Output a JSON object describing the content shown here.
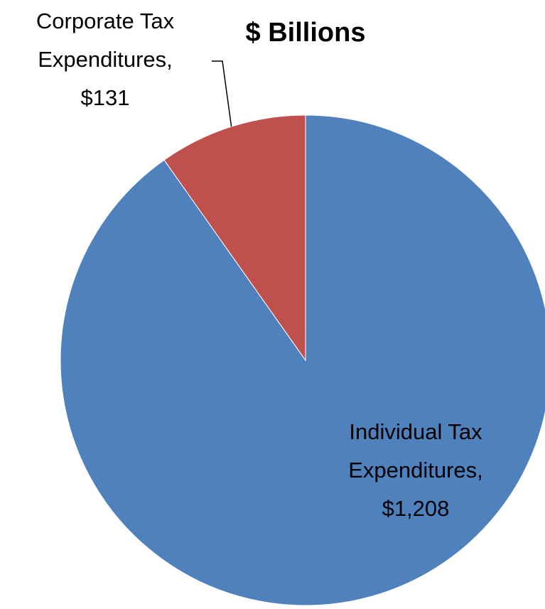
{
  "chart_data": {
    "type": "pie",
    "title": "$ Billions",
    "categories": [
      "Individual Tax Expenditures",
      "Corporate Tax Expenditures"
    ],
    "values": [
      1208,
      131
    ],
    "colors": [
      "#4F81BD",
      "#C0504D"
    ],
    "data_labels": [
      [
        "Individual Tax",
        "Expenditures,",
        "$1,208"
      ],
      [
        "Corporate Tax",
        "Expenditures,",
        "$131"
      ]
    ],
    "legend": "none"
  }
}
